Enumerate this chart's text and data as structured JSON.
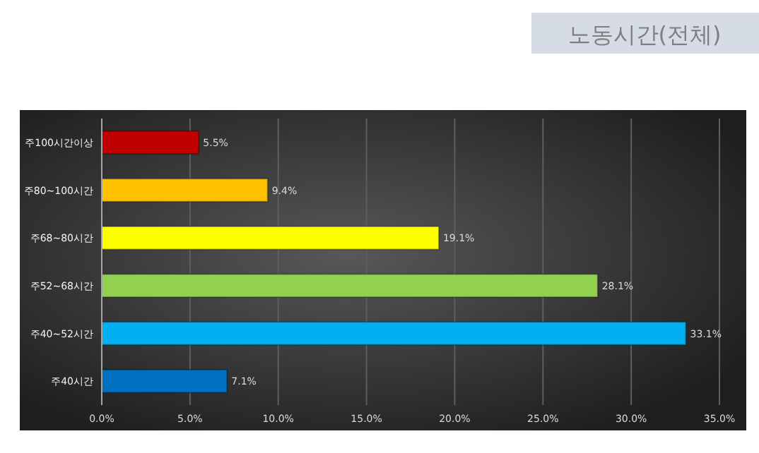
{
  "chart_data": {
    "type": "bar",
    "orientation": "horizontal",
    "title": "노동시간(전체)",
    "categories": [
      "주100시간이상",
      "주80~100시간",
      "주68~80시간",
      "주52~68시간",
      "주40~52시간",
      "주40시간"
    ],
    "values": [
      5.5,
      9.4,
      19.1,
      28.1,
      33.1,
      7.1
    ],
    "colors": [
      "#c00000",
      "#ffc000",
      "#ffff00",
      "#92d050",
      "#00b0f0",
      "#0070c0"
    ],
    "value_labels": [
      "5.5%",
      "9.4%",
      "19.1%",
      "28.1%",
      "33.1%",
      "7.1%"
    ],
    "xlim": [
      0,
      35
    ],
    "xticks": [
      {
        "value": 0,
        "label": "0.0%"
      },
      {
        "value": 5,
        "label": "5.0%"
      },
      {
        "value": 10,
        "label": "10.0%"
      },
      {
        "value": 15,
        "label": "15.0%"
      },
      {
        "value": 20,
        "label": "20.0%"
      },
      {
        "value": 25,
        "label": "25.0%"
      },
      {
        "value": 30,
        "label": "30.0%"
      },
      {
        "value": 35,
        "label": "35.0%"
      }
    ],
    "grid": "x"
  }
}
